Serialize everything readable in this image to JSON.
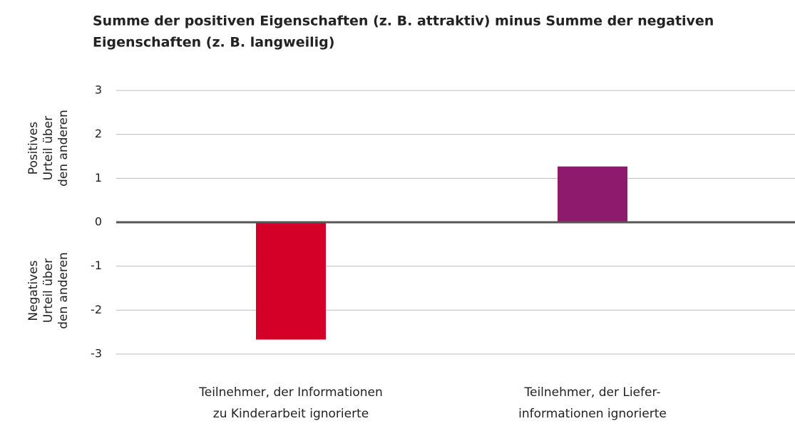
{
  "chart_data": {
    "type": "bar",
    "title": [
      "Summe der positiven Eigenschaften (z. B. attraktiv) minus Summe der negativen",
      "Eigenschaften (z. B. langweilig)"
    ],
    "y_label_positive": [
      "Positives",
      "Urteil über",
      "den anderen"
    ],
    "y_label_negative": [
      "Negatives",
      "Urteil über",
      "den anderen"
    ],
    "categories": [
      [
        "Teilnehmer, der Informationen",
        "zu Kinderarbeit ignorierte"
      ],
      [
        "Teilnehmer, der Liefer-",
        "informationen ignorierte"
      ]
    ],
    "values": [
      -2.67,
      1.27
    ],
    "colors": [
      "#d50027",
      "#8e1a6e"
    ],
    "ylim": [
      -3,
      3
    ],
    "yticks": [
      -3,
      -2,
      -1,
      0,
      1,
      2,
      3
    ],
    "grid": true
  }
}
